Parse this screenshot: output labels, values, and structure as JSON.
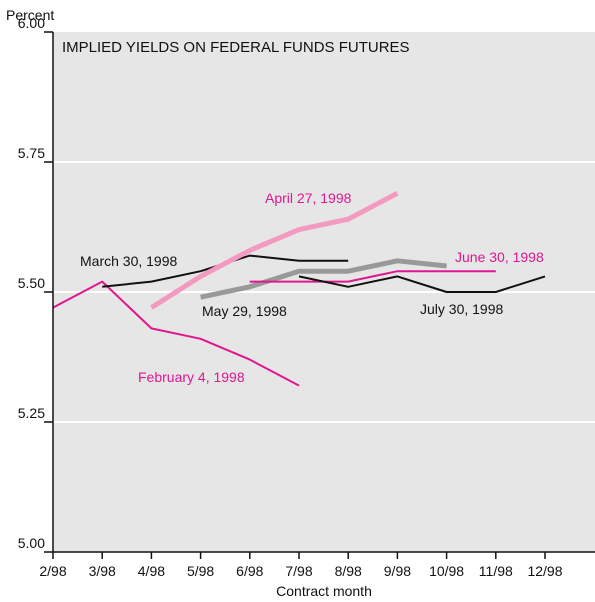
{
  "chart_data": {
    "type": "line",
    "title": "IMPLIED YIELDS ON FEDERAL FUNDS FUTURES",
    "y_label": "Percent",
    "x_label": "Contract month",
    "categories": [
      "2/98",
      "3/98",
      "4/98",
      "5/98",
      "6/98",
      "7/98",
      "8/98",
      "9/98",
      "10/98",
      "11/98",
      "12/98"
    ],
    "series": [
      {
        "name": "February 4, 1998",
        "color": "#e0178f",
        "label_color": "#e0178f",
        "width": 2,
        "values": [
          5.47,
          5.52,
          5.43,
          5.41,
          5.37,
          5.32,
          null,
          null,
          null,
          null,
          null
        ]
      },
      {
        "name": "March 30, 1998",
        "color": "#111111",
        "label_color": "#111111",
        "width": 2,
        "values": [
          null,
          5.51,
          5.52,
          5.54,
          5.57,
          5.56,
          5.56,
          null,
          null,
          null,
          null
        ]
      },
      {
        "name": "April 27, 1998",
        "color": "#f49ac1",
        "label_color": "#e0178f",
        "width": 5,
        "values": [
          null,
          null,
          5.47,
          5.53,
          5.58,
          5.62,
          5.64,
          5.69,
          null,
          null,
          null
        ]
      },
      {
        "name": "May 29, 1998",
        "color": "#999999",
        "label_color": "#111111",
        "width": 5,
        "values": [
          null,
          null,
          null,
          5.49,
          5.51,
          5.54,
          5.54,
          5.56,
          5.55,
          null,
          null
        ]
      },
      {
        "name": "June 30, 1998",
        "color": "#e0178f",
        "label_color": "#e0178f",
        "width": 2,
        "values": [
          null,
          null,
          null,
          null,
          5.52,
          5.52,
          5.52,
          5.54,
          5.54,
          5.54,
          null
        ]
      },
      {
        "name": "July 30, 1998",
        "color": "#111111",
        "label_color": "#111111",
        "width": 2,
        "values": [
          null,
          null,
          null,
          null,
          null,
          5.53,
          5.51,
          5.53,
          5.5,
          5.5,
          5.53
        ]
      }
    ],
    "ylim": [
      5,
      6
    ],
    "yticks": [
      {
        "value": 5,
        "label": "5.00"
      },
      {
        "value": 5.25,
        "label": "5.25"
      },
      {
        "value": 5.5,
        "label": "5.50"
      },
      {
        "value": 5.75,
        "label": "5.75"
      },
      {
        "value": 6,
        "label": "6.00"
      }
    ],
    "grid": true
  }
}
